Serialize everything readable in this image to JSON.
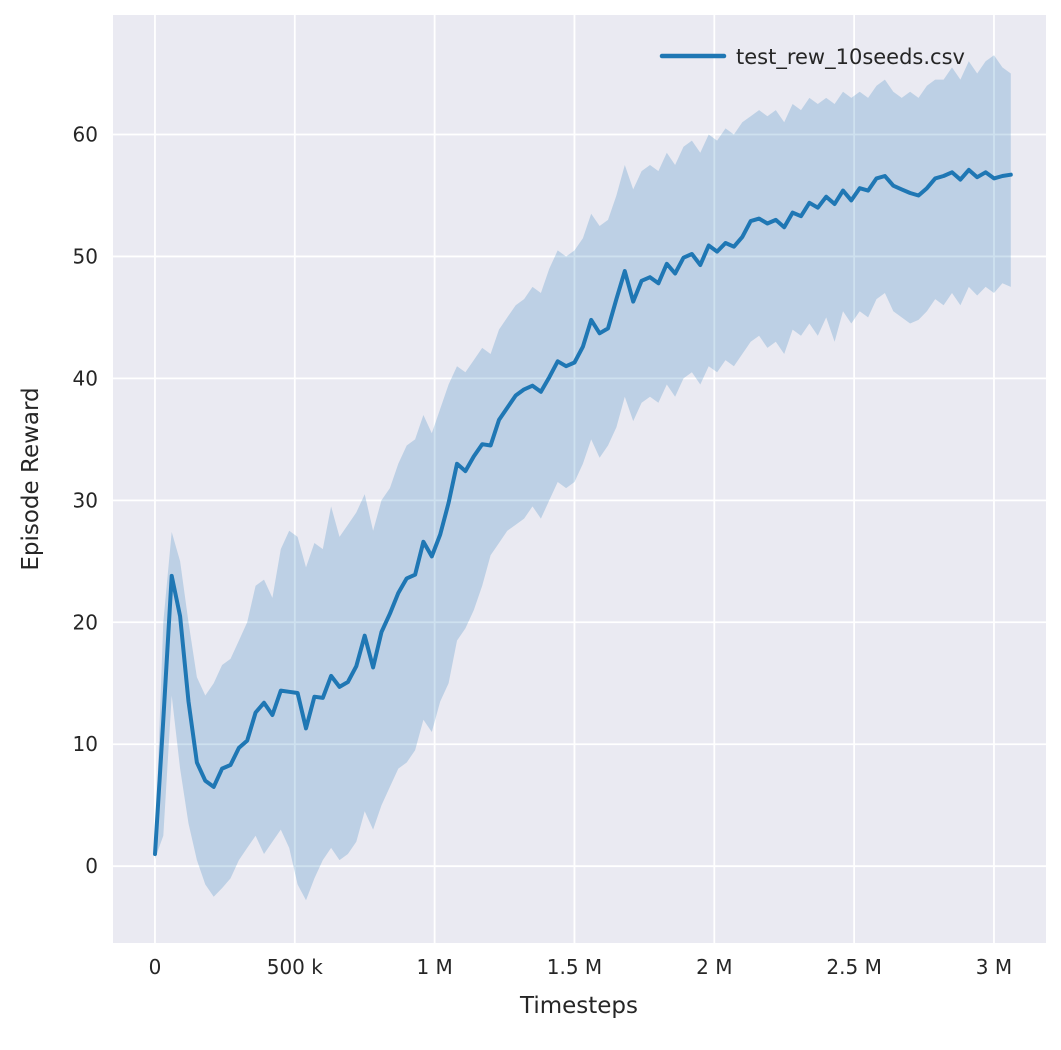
{
  "chart_data": {
    "type": "line",
    "title": "",
    "xlabel": "Timesteps",
    "ylabel": "Episode Reward",
    "grid": true,
    "legend_position": "upper right",
    "xlim": [
      -150000,
      3186000
    ],
    "ylim": [
      -6.3,
      69.8
    ],
    "xticks": {
      "values": [
        0,
        500000,
        1000000,
        1500000,
        2000000,
        2500000,
        3000000
      ],
      "labels": [
        "0",
        "500 k",
        "1 M",
        "1.5 M",
        "2 M",
        "2.5 M",
        "3 M"
      ]
    },
    "yticks": {
      "values": [
        0,
        10,
        20,
        30,
        40,
        50,
        60
      ],
      "labels": [
        "0",
        "10",
        "20",
        "30",
        "40",
        "50",
        "60"
      ]
    },
    "colors": {
      "plot_bg": "#eaeaf2",
      "grid": "#ffffff",
      "line": "#1f77b4",
      "band": "#1f77b4",
      "text": "#262626"
    },
    "series": [
      {
        "name": "test_rew_10seeds.csv",
        "color": "#1f77b4",
        "x": [
          0,
          30000,
          60000,
          90000,
          120000,
          150000,
          180000,
          210000,
          240000,
          270000,
          300000,
          330000,
          360000,
          390000,
          420000,
          450000,
          480000,
          510000,
          540000,
          570000,
          600000,
          630000,
          660000,
          690000,
          720000,
          750000,
          780000,
          810000,
          840000,
          870000,
          900000,
          930000,
          960000,
          990000,
          1020000,
          1050000,
          1080000,
          1110000,
          1140000,
          1170000,
          1200000,
          1230000,
          1260000,
          1290000,
          1320000,
          1350000,
          1380000,
          1410000,
          1440000,
          1470000,
          1500000,
          1530000,
          1560000,
          1590000,
          1620000,
          1650000,
          1680000,
          1710000,
          1740000,
          1770000,
          1800000,
          1830000,
          1860000,
          1890000,
          1920000,
          1950000,
          1980000,
          2010000,
          2040000,
          2070000,
          2100000,
          2130000,
          2160000,
          2190000,
          2220000,
          2250000,
          2280000,
          2310000,
          2340000,
          2370000,
          2400000,
          2430000,
          2460000,
          2490000,
          2520000,
          2550000,
          2580000,
          2610000,
          2640000,
          2670000,
          2700000,
          2730000,
          2760000,
          2790000,
          2820000,
          2850000,
          2880000,
          2910000,
          2940000,
          2970000,
          3000000,
          3030000,
          3060000
        ],
        "mean": [
          1.0,
          12.0,
          23.8,
          20.5,
          13.5,
          8.5,
          7.0,
          6.5,
          8.0,
          8.3,
          9.7,
          10.3,
          12.6,
          13.4,
          12.4,
          14.4,
          14.3,
          14.2,
          11.3,
          13.9,
          13.8,
          15.6,
          14.7,
          15.1,
          16.4,
          18.9,
          16.3,
          19.2,
          20.7,
          22.4,
          23.6,
          23.9,
          26.6,
          25.4,
          27.2,
          29.8,
          33.0,
          32.4,
          33.6,
          34.6,
          34.5,
          36.6,
          37.6,
          38.6,
          39.1,
          39.4,
          38.9,
          40.1,
          41.4,
          41.0,
          41.3,
          42.6,
          44.8,
          43.7,
          44.1,
          46.5,
          48.8,
          46.3,
          48.0,
          48.3,
          47.8,
          49.4,
          48.6,
          49.9,
          50.2,
          49.3,
          50.9,
          50.4,
          51.1,
          50.8,
          51.6,
          52.9,
          53.1,
          52.7,
          53.0,
          52.4,
          53.6,
          53.3,
          54.4,
          54.0,
          54.9,
          54.3,
          55.4,
          54.6,
          55.6,
          55.4,
          56.4,
          56.6,
          55.8,
          55.5,
          55.2,
          55.0,
          55.6,
          56.4,
          56.6,
          56.9,
          56.3,
          57.1,
          56.5,
          56.9,
          56.4,
          56.6,
          56.7
        ],
        "band_lower": [
          0.6,
          2.5,
          14.0,
          8.0,
          3.5,
          0.5,
          -1.5,
          -2.5,
          -1.8,
          -1.0,
          0.5,
          1.5,
          2.5,
          1.0,
          2.0,
          3.0,
          1.5,
          -1.5,
          -2.8,
          -1.0,
          0.5,
          1.5,
          0.5,
          1.0,
          2.0,
          4.5,
          3.0,
          5.0,
          6.5,
          8.0,
          8.5,
          9.5,
          12.0,
          11.0,
          13.5,
          15.0,
          18.5,
          19.5,
          21.0,
          23.0,
          25.5,
          26.5,
          27.5,
          28.0,
          28.5,
          29.5,
          28.5,
          30.0,
          31.5,
          31.0,
          31.5,
          33.0,
          35.0,
          33.5,
          34.5,
          36.0,
          38.5,
          36.5,
          38.0,
          38.5,
          38.0,
          39.5,
          38.5,
          40.0,
          40.5,
          39.5,
          41.0,
          40.5,
          41.5,
          41.0,
          42.0,
          43.0,
          43.5,
          42.5,
          43.0,
          42.0,
          44.0,
          43.5,
          44.5,
          43.5,
          45.0,
          43.0,
          45.5,
          44.5,
          45.5,
          45.0,
          46.5,
          47.0,
          45.5,
          45.0,
          44.5,
          44.8,
          45.5,
          46.5,
          46.0,
          47.0,
          46.0,
          47.5,
          46.8,
          47.5,
          47.0,
          47.8,
          47.5
        ],
        "band_upper": [
          1.5,
          20.0,
          27.4,
          25.0,
          20.0,
          15.5,
          14.0,
          15.0,
          16.5,
          17.0,
          18.5,
          20.0,
          23.0,
          23.5,
          22.0,
          26.0,
          27.5,
          27.0,
          24.5,
          26.5,
          26.0,
          29.5,
          27.0,
          28.0,
          29.0,
          30.5,
          27.5,
          30.0,
          31.0,
          33.0,
          34.5,
          35.0,
          37.0,
          35.5,
          37.5,
          39.5,
          41.0,
          40.5,
          41.5,
          42.5,
          42.0,
          44.0,
          45.0,
          46.0,
          46.5,
          47.5,
          47.0,
          49.0,
          50.5,
          50.0,
          50.5,
          51.5,
          53.5,
          52.5,
          53.0,
          55.0,
          57.5,
          55.5,
          57.0,
          57.5,
          57.0,
          58.5,
          57.5,
          59.0,
          59.5,
          58.5,
          60.0,
          59.5,
          60.5,
          60.0,
          61.0,
          61.5,
          62.0,
          61.5,
          62.0,
          61.0,
          62.5,
          62.0,
          63.0,
          62.5,
          63.0,
          62.5,
          63.5,
          63.0,
          63.5,
          63.0,
          64.0,
          64.5,
          63.5,
          63.0,
          63.5,
          63.0,
          64.0,
          64.5,
          64.5,
          65.5,
          64.5,
          66.0,
          65.0,
          66.0,
          66.5,
          65.5,
          65.0
        ]
      }
    ]
  }
}
